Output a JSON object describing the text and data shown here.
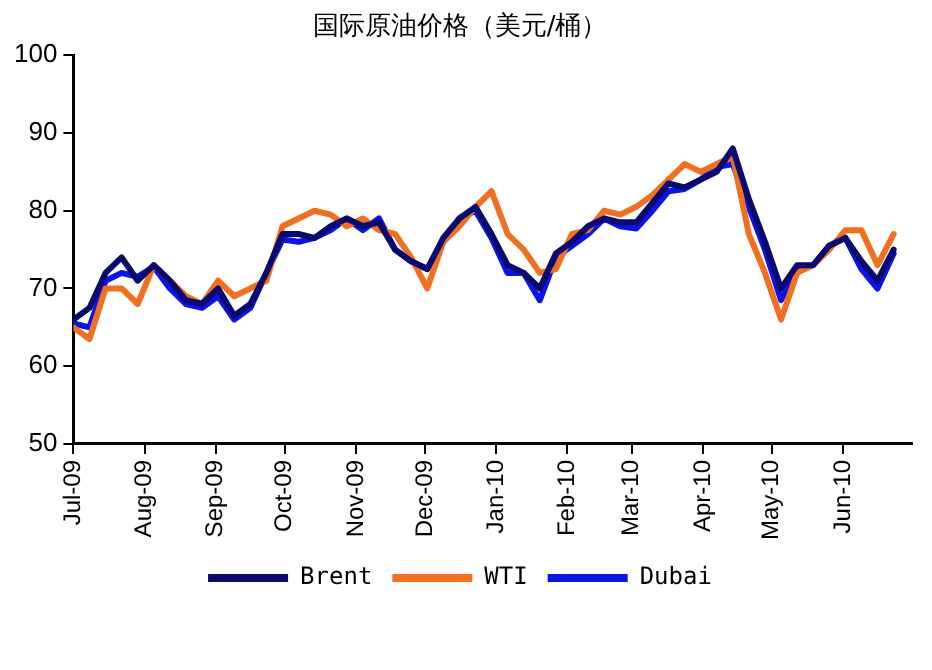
{
  "chart_data": {
    "type": "line",
    "title": "国际原油价格（美元/桶）",
    "x": [
      "2009-07-01",
      "2009-07-08",
      "2009-07-15",
      "2009-07-22",
      "2009-07-29",
      "2009-08-05",
      "2009-08-12",
      "2009-08-19",
      "2009-08-26",
      "2009-09-02",
      "2009-09-09",
      "2009-09-16",
      "2009-09-23",
      "2009-09-30",
      "2009-10-07",
      "2009-10-14",
      "2009-10-21",
      "2009-10-28",
      "2009-11-04",
      "2009-11-11",
      "2009-11-18",
      "2009-11-25",
      "2009-12-02",
      "2009-12-09",
      "2009-12-16",
      "2009-12-23",
      "2009-12-30",
      "2010-01-06",
      "2010-01-13",
      "2010-01-20",
      "2010-01-27",
      "2010-02-03",
      "2010-02-10",
      "2010-02-17",
      "2010-02-24",
      "2010-03-03",
      "2010-03-10",
      "2010-03-17",
      "2010-03-24",
      "2010-03-31",
      "2010-04-07",
      "2010-04-14",
      "2010-04-21",
      "2010-04-28",
      "2010-05-05",
      "2010-05-12",
      "2010-05-19",
      "2010-05-26",
      "2010-06-02",
      "2010-06-09",
      "2010-06-16",
      "2010-06-23"
    ],
    "series": [
      {
        "name": "Brent",
        "color": "#0a0a6e",
        "values": [
          66,
          67.5,
          72,
          74,
          71,
          73,
          71,
          68.5,
          68,
          70,
          66.5,
          68,
          72,
          77,
          77,
          76.5,
          78,
          79,
          78,
          78.5,
          75,
          73.5,
          72.5,
          76.5,
          79,
          80.5,
          77,
          73,
          72,
          70,
          74.5,
          76,
          78,
          79,
          78.5,
          78.5,
          81,
          83.5,
          83,
          84,
          85,
          88,
          81.5,
          76,
          70,
          73,
          73,
          75.5,
          76.5,
          73.5,
          71,
          75
        ]
      },
      {
        "name": "WTI",
        "color": "#f07020",
        "values": [
          65,
          63.5,
          70,
          70,
          68,
          73,
          71,
          69,
          68,
          71,
          69,
          70,
          71,
          78,
          79,
          80,
          79.5,
          78,
          79,
          77.5,
          77,
          74,
          70,
          76,
          78,
          80.5,
          82.5,
          77,
          75,
          72,
          72.5,
          77,
          77.5,
          80,
          79.5,
          80.5,
          82,
          84,
          86,
          85,
          86,
          87,
          77,
          72,
          66,
          72,
          73,
          75,
          77.5,
          77.5,
          73,
          77
        ]
      },
      {
        "name": "Dubai",
        "color": "#0a14e6",
        "values": [
          65.5,
          65,
          71,
          72,
          71.5,
          72.8,
          70,
          68,
          67.5,
          69,
          66,
          67.5,
          72,
          76.3,
          76,
          76.5,
          77.5,
          79,
          77.5,
          79,
          75,
          73.5,
          72.5,
          76,
          79,
          80,
          76.5,
          72,
          72,
          68.5,
          74,
          75.5,
          77,
          79,
          78,
          77.7,
          80,
          82.5,
          82.8,
          84,
          85.6,
          86,
          80.5,
          75,
          68.5,
          72.5,
          73,
          75.5,
          76.5,
          72.5,
          70,
          74.5
        ]
      }
    ],
    "xlim": [
      "2009-07-01",
      "2010-07-01"
    ],
    "xticks": [
      {
        "value": "2009-07-01",
        "label": "Jul-09"
      },
      {
        "value": "2009-08-01",
        "label": "Aug-09"
      },
      {
        "value": "2009-09-01",
        "label": "Sep-09"
      },
      {
        "value": "2009-10-01",
        "label": "Oct-09"
      },
      {
        "value": "2009-11-01",
        "label": "Nov-09"
      },
      {
        "value": "2009-12-01",
        "label": "Dec-09"
      },
      {
        "value": "2010-01-01",
        "label": "Jan-10"
      },
      {
        "value": "2010-02-01",
        "label": "Feb-10"
      },
      {
        "value": "2010-03-01",
        "label": "Mar-10"
      },
      {
        "value": "2010-04-01",
        "label": "Apr-10"
      },
      {
        "value": "2010-05-01",
        "label": "May-10"
      },
      {
        "value": "2010-06-01",
        "label": "Jun-10"
      }
    ],
    "ylim": [
      50,
      100
    ],
    "yticks": [
      50,
      60,
      70,
      80,
      90,
      100
    ],
    "grid": false,
    "legend": "bottom",
    "marker": "none",
    "line_style": "solid"
  }
}
